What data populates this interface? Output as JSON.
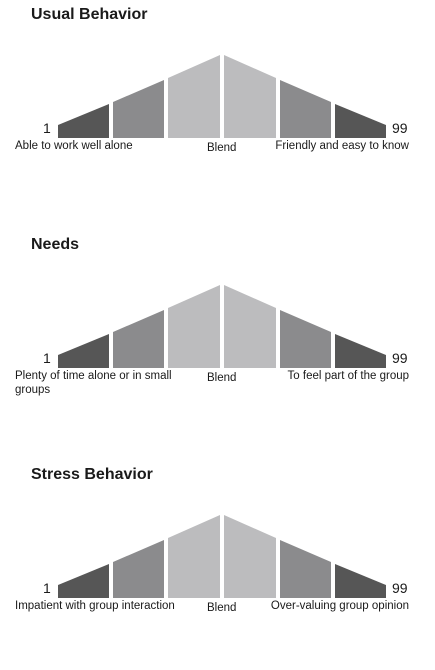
{
  "sections": [
    {
      "title": "Usual Behavior",
      "min": "1",
      "max": "99",
      "left_label": "Able to work well alone",
      "mid_label": "Blend",
      "right_label": "Friendly and easy to know"
    },
    {
      "title": "Needs",
      "min": "1",
      "max": "99",
      "left_label": "Plenty of time alone or in small groups",
      "mid_label": "Blend",
      "right_label": "To feel part of the group"
    },
    {
      "title": "Stress Behavior",
      "min": "1",
      "max": "99",
      "left_label": "Impatient with group interaction",
      "mid_label": "Blend",
      "right_label": "Over-valuing group opinion"
    }
  ],
  "colors": {
    "segment_dark": "#565656",
    "segment_mid": "#8b8b8d",
    "segment_light": "#bcbcbe"
  }
}
